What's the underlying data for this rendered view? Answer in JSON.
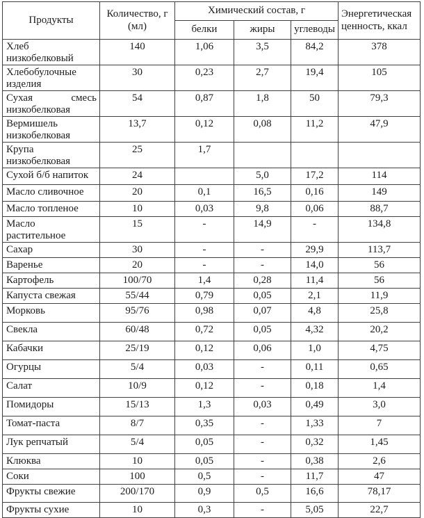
{
  "table": {
    "headers": {
      "products": "Продукты",
      "quantity": "Количество, г (мл)",
      "chemical": "Химический состав, г",
      "protein": "белки",
      "fat": "жиры",
      "carbs": "углеводы",
      "energy": "Энергетическая ценность, ккал"
    },
    "rows": [
      {
        "name": "Хлеб низкобелковый",
        "qty": "140",
        "protein": "1,06",
        "fat": "3,5",
        "carbs": "84,2",
        "energy": "378"
      },
      {
        "name": "Хлебобулочные изделия",
        "qty": "30",
        "protein": "0,23",
        "fat": "2,7",
        "carbs": "19,4",
        "energy": "105"
      },
      {
        "name": "Сухая смесь низкобелковая",
        "qty": "54",
        "protein": "0,87",
        "fat": "1,8",
        "carbs": "50",
        "energy": "79,3"
      },
      {
        "name": "Вермишель низкобелковая",
        "qty": "13,7",
        "protein": "0,12",
        "fat": "0,08",
        "carbs": "11,2",
        "energy": "47,9"
      },
      {
        "name": "Крупа низкобелковая",
        "qty": "25",
        "protein": "1,7",
        "fat": "",
        "carbs": "",
        "energy": ""
      },
      {
        "name": "Сухой б/б напиток",
        "qty": "24",
        "protein": "",
        "fat": "5,0",
        "carbs": "17,2",
        "energy": "114"
      },
      {
        "name": "Масло сливочное",
        "qty": "20",
        "protein": "0,1",
        "fat": "16,5",
        "carbs": "0,16",
        "energy": "149"
      },
      {
        "name": "Масло топленое",
        "qty": "10",
        "protein": "0,03",
        "fat": "9,8",
        "carbs": "0,06",
        "energy": "88,7"
      },
      {
        "name": "Масло растительное",
        "qty": "15",
        "protein": "-",
        "fat": "14,9",
        "carbs": "-",
        "energy": "134,8"
      },
      {
        "name": "Сахар",
        "qty": "30",
        "protein": "-",
        "fat": "-",
        "carbs": "29,9",
        "energy": "113,7"
      },
      {
        "name": "Варенье",
        "qty": "20",
        "protein": "-",
        "fat": "-",
        "carbs": "14,0",
        "energy": "56"
      },
      {
        "name": "Картофель",
        "qty": "100/70",
        "protein": "1,4",
        "fat": "0,28",
        "carbs": "11,4",
        "energy": "56"
      },
      {
        "name": "Капуста свежая",
        "qty": "55/44",
        "protein": "0,79",
        "fat": "0,05",
        "carbs": "2,1",
        "energy": "11,9"
      },
      {
        "name": "Морковь",
        "qty": "95/76",
        "protein": "0,98",
        "fat": "0,07",
        "carbs": "4,8",
        "energy": "25,8"
      },
      {
        "name": "Свекла",
        "qty": "60/48",
        "protein": "0,72",
        "fat": "0,05",
        "carbs": "4,32",
        "energy": "20,2"
      },
      {
        "name": "Кабачки",
        "qty": "25/19",
        "protein": "0,12",
        "fat": "0,06",
        "carbs": "1,0",
        "energy": "4,75"
      },
      {
        "name": "Огурцы",
        "qty": "5/4",
        "protein": "0,03",
        "fat": "-",
        "carbs": "0,11",
        "energy": "0,65"
      },
      {
        "name": "Салат",
        "qty": "10/9",
        "protein": "0,12",
        "fat": "-",
        "carbs": "0,18",
        "energy": "1,4"
      },
      {
        "name": "Помидоры",
        "qty": "15/13",
        "protein": "1,3",
        "fat": "0,03",
        "carbs": "0,49",
        "energy": "3,0"
      },
      {
        "name": "Томат-паста",
        "qty": "8/7",
        "protein": "0,35",
        "fat": "-",
        "carbs": "1,33",
        "energy": "7"
      },
      {
        "name": "Лук репчатый",
        "qty": "5/4",
        "protein": "0,05",
        "fat": "-",
        "carbs": "0,32",
        "energy": "1,45"
      },
      {
        "name": "Клюква",
        "qty": "10",
        "protein": "0,05",
        "fat": "-",
        "carbs": "0,38",
        "energy": "2,6"
      },
      {
        "name": "Соки",
        "qty": "100",
        "protein": "0,5",
        "fat": "-",
        "carbs": "11,7",
        "energy": "47"
      },
      {
        "name": "Фрукты свежие",
        "qty": "200/170",
        "protein": "0,9",
        "fat": "0,5",
        "carbs": "16,6",
        "energy": "78,17"
      },
      {
        "name": "Фрукты сухие",
        "qty": "10",
        "protein": "0,3",
        "fat": "-",
        "carbs": "5,05",
        "energy": "22,7"
      }
    ]
  }
}
